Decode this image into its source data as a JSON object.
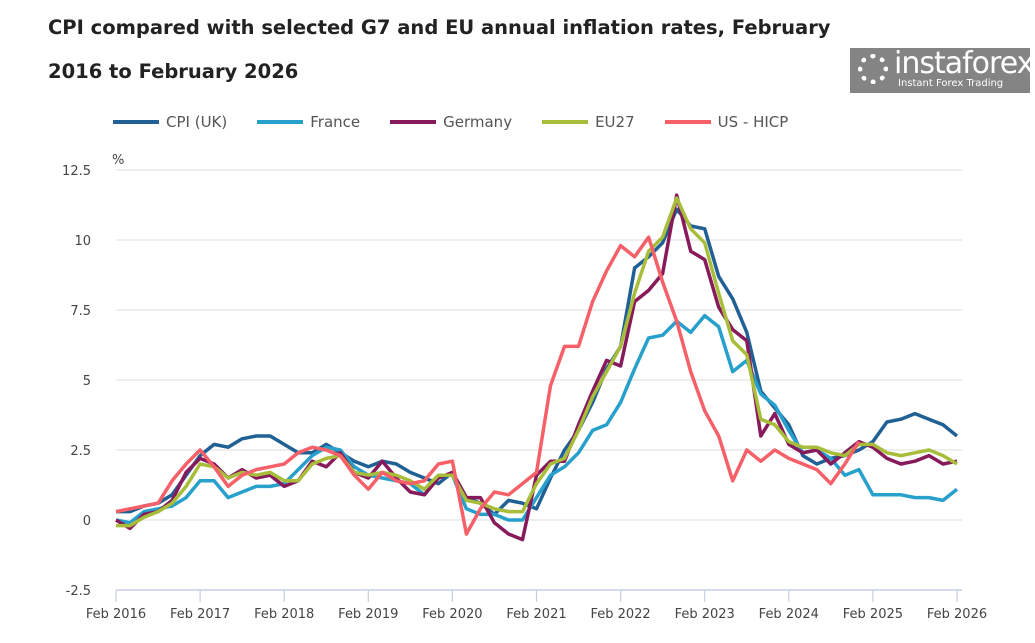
{
  "chart_data": {
    "type": "line",
    "title": "CPI compared with selected G7 and EU annual inflation rates, February 2016 to February 2026",
    "title_lines": [
      "CPI compared with selected G7 and EU annual inflation rates, February",
      "2016 to February 2026"
    ],
    "ylabel": "%",
    "ylim": [
      -2.5,
      12.5
    ],
    "yticks": [
      "12.5",
      "10",
      "7.5",
      "5",
      "2.5",
      "0",
      "-2.5"
    ],
    "xticks": [
      "Feb 2016",
      "Feb 2017",
      "Feb 2018",
      "Feb 2019",
      "Feb 2020",
      "Feb 2021",
      "Feb 2022",
      "Feb 2023",
      "Feb 2024",
      "Feb 2025",
      "Feb 2026"
    ],
    "grid": true,
    "legend_position": "top",
    "x": [
      "2016-02",
      "2016-04",
      "2016-06",
      "2016-08",
      "2016-10",
      "2016-12",
      "2017-02",
      "2017-04",
      "2017-06",
      "2017-08",
      "2017-10",
      "2017-12",
      "2018-02",
      "2018-04",
      "2018-06",
      "2018-08",
      "2018-10",
      "2018-12",
      "2019-02",
      "2019-04",
      "2019-06",
      "2019-08",
      "2019-10",
      "2019-12",
      "2020-02",
      "2020-04",
      "2020-06",
      "2020-08",
      "2020-10",
      "2020-12",
      "2021-02",
      "2021-04",
      "2021-06",
      "2021-08",
      "2021-10",
      "2021-12",
      "2022-02",
      "2022-04",
      "2022-06",
      "2022-08",
      "2022-10",
      "2022-12",
      "2023-02",
      "2023-04",
      "2023-06",
      "2023-08",
      "2023-10",
      "2023-12",
      "2024-02",
      "2024-04",
      "2024-06",
      "2024-08",
      "2024-10",
      "2024-12",
      "2025-02",
      "2025-04",
      "2025-06",
      "2025-08",
      "2025-10",
      "2025-12",
      "2026-02"
    ],
    "series": [
      {
        "name": "CPI (UK)",
        "color": "#206095",
        "values": [
          0.3,
          0.3,
          0.5,
          0.6,
          0.9,
          1.6,
          2.3,
          2.7,
          2.6,
          2.9,
          3.0,
          3.0,
          2.7,
          2.4,
          2.4,
          2.7,
          2.4,
          2.1,
          1.9,
          2.1,
          2.0,
          1.7,
          1.5,
          1.3,
          1.7,
          0.8,
          0.6,
          0.2,
          0.7,
          0.6,
          0.4,
          1.5,
          2.5,
          3.2,
          4.2,
          5.4,
          6.2,
          9.0,
          9.4,
          9.9,
          11.1,
          10.5,
          10.4,
          8.7,
          7.9,
          6.7,
          4.6,
          4.0,
          3.4,
          2.3,
          2.0,
          2.2,
          2.3,
          2.5,
          2.8,
          3.5,
          3.6,
          3.8,
          3.6,
          3.4,
          3.0
        ]
      },
      {
        "name": "France",
        "color": "#27a0cc",
        "values": [
          0.0,
          -0.1,
          0.3,
          0.4,
          0.5,
          0.8,
          1.4,
          1.4,
          0.8,
          1.0,
          1.2,
          1.2,
          1.3,
          1.8,
          2.3,
          2.6,
          2.5,
          1.9,
          1.6,
          1.5,
          1.4,
          1.3,
          0.9,
          1.6,
          1.6,
          0.4,
          0.2,
          0.2,
          0.0,
          0.0,
          0.8,
          1.6,
          1.9,
          2.4,
          3.2,
          3.4,
          4.2,
          5.4,
          6.5,
          6.6,
          7.1,
          6.7,
          7.3,
          6.9,
          5.3,
          5.7,
          4.5,
          4.1,
          3.2,
          2.4,
          2.5,
          2.2,
          1.6,
          1.8,
          0.9,
          0.9,
          0.9,
          0.8,
          0.8,
          0.7,
          1.1
        ]
      },
      {
        "name": "Germany",
        "color": "#871a5b",
        "values": [
          0.0,
          -0.3,
          0.2,
          0.3,
          0.7,
          1.7,
          2.2,
          2.0,
          1.5,
          1.8,
          1.5,
          1.6,
          1.2,
          1.4,
          2.1,
          1.9,
          2.4,
          1.7,
          1.5,
          2.1,
          1.5,
          1.0,
          0.9,
          1.5,
          1.7,
          0.8,
          0.8,
          -0.1,
          -0.5,
          -0.7,
          1.6,
          2.1,
          2.1,
          3.4,
          4.6,
          5.7,
          5.5,
          7.8,
          8.2,
          8.8,
          11.6,
          9.6,
          9.3,
          7.6,
          6.8,
          6.4,
          3.0,
          3.8,
          2.7,
          2.4,
          2.5,
          2.0,
          2.4,
          2.8,
          2.6,
          2.2,
          2.0,
          2.1,
          2.3,
          2.0,
          2.1
        ]
      },
      {
        "name": "EU27",
        "color": "#a8bd3a",
        "values": [
          -0.2,
          -0.2,
          0.1,
          0.3,
          0.6,
          1.2,
          2.0,
          1.9,
          1.5,
          1.7,
          1.6,
          1.7,
          1.4,
          1.4,
          2.0,
          2.2,
          2.3,
          1.7,
          1.6,
          1.7,
          1.6,
          1.4,
          1.1,
          1.6,
          1.6,
          0.7,
          0.6,
          0.4,
          0.3,
          0.3,
          1.3,
          2.0,
          2.2,
          3.2,
          4.4,
          5.3,
          6.2,
          8.1,
          9.6,
          10.1,
          11.5,
          10.4,
          9.9,
          8.1,
          6.4,
          5.9,
          3.6,
          3.4,
          2.8,
          2.6,
          2.6,
          2.4,
          2.3,
          2.7,
          2.7,
          2.4,
          2.3,
          2.4,
          2.5,
          2.3,
          2.0
        ]
      },
      {
        "name": "US - HICP",
        "color": "#f66068",
        "values": [
          0.3,
          0.4,
          0.5,
          0.6,
          1.4,
          2.0,
          2.5,
          1.9,
          1.2,
          1.6,
          1.8,
          1.9,
          2.0,
          2.4,
          2.6,
          2.5,
          2.3,
          1.6,
          1.1,
          1.7,
          1.4,
          1.3,
          1.4,
          2.0,
          2.1,
          -0.5,
          0.4,
          1.0,
          0.9,
          1.3,
          1.7,
          4.8,
          6.2,
          6.2,
          7.8,
          8.9,
          9.8,
          9.4,
          10.1,
          8.5,
          7.1,
          5.3,
          3.9,
          3.0,
          1.4,
          2.5,
          2.1,
          2.5,
          2.2,
          2.0,
          1.8,
          1.3,
          2.0,
          2.8,
          null,
          null,
          null,
          null,
          null,
          null,
          null
        ]
      }
    ]
  },
  "watermark": {
    "brand": "instaforex",
    "tagline": "Instant Forex Trading"
  }
}
